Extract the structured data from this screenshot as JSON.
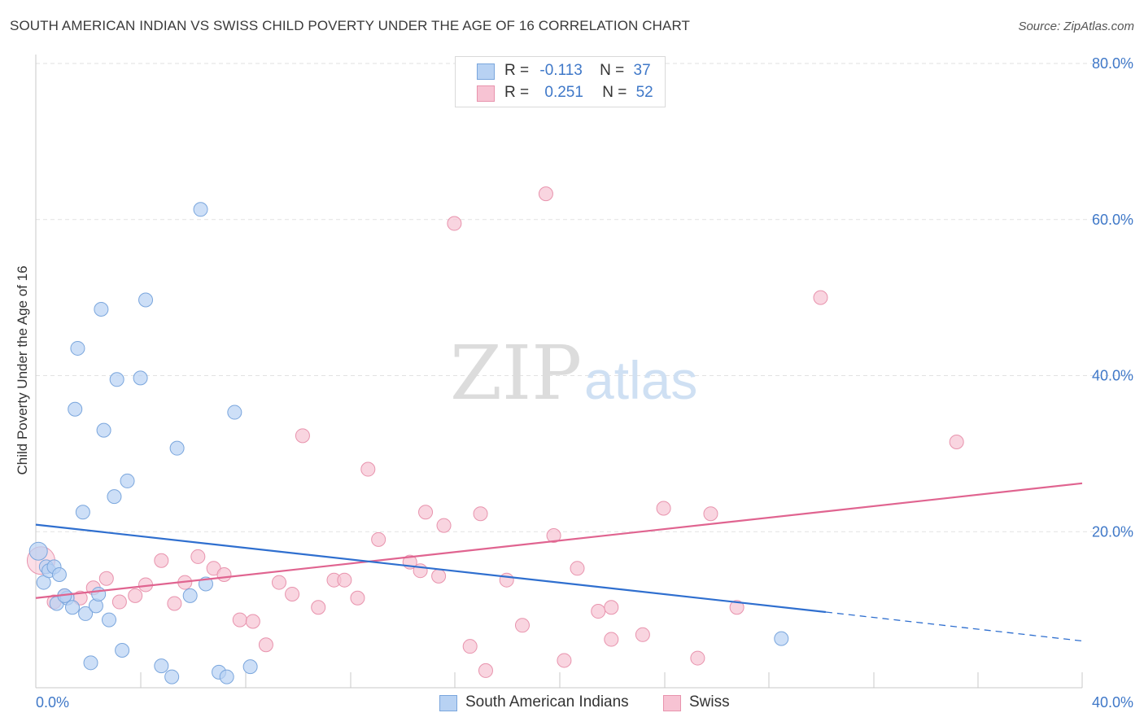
{
  "header": {
    "title": "SOUTH AMERICAN INDIAN VS SWISS CHILD POVERTY UNDER THE AGE OF 16 CORRELATION CHART",
    "source": "Source: ZipAtlas.com"
  },
  "legend": {
    "row1": {
      "r_label": "R =",
      "r_value": "-0.113",
      "n_label": "N =",
      "n_value": "37"
    },
    "row2": {
      "r_label": "R =",
      "r_value": "0.251",
      "n_label": "N =",
      "n_value": "52"
    }
  },
  "bottom_legend": {
    "south_american": "South American Indians",
    "swiss": "Swiss"
  },
  "watermark": {
    "zip": "ZIP",
    "atlas": "atlas"
  },
  "colors": {
    "blue_fill": "#b8d2f3",
    "blue_stroke": "#7aa6dd",
    "blue_line": "#2f6fcf",
    "pink_fill": "#f7c3d3",
    "pink_stroke": "#e893ad",
    "pink_line": "#e06490",
    "tick_text": "#3f78c8",
    "grid": "#e2e2e2"
  },
  "chart_data": {
    "type": "scatter",
    "title": "SOUTH AMERICAN INDIAN VS SWISS CHILD POVERTY UNDER THE AGE OF 16 CORRELATION CHART",
    "xlabel": "",
    "ylabel": "Child Poverty Under the Age of 16",
    "xlim": [
      0,
      40
    ],
    "ylim": [
      0,
      80
    ],
    "x_tick_labels": [
      "0.0%",
      "40.0%"
    ],
    "y_ticks": [
      20,
      40,
      60,
      80
    ],
    "y_tick_labels": [
      "20.0%",
      "40.0%",
      "60.0%",
      "80.0%"
    ],
    "grid": true,
    "series": [
      {
        "name": "South American Indians",
        "r": -0.113,
        "n": 37,
        "points": [
          [
            0.1,
            17.5
          ],
          [
            0.3,
            13.5
          ],
          [
            0.4,
            15.5
          ],
          [
            0.5,
            15.0
          ],
          [
            0.7,
            15.5
          ],
          [
            0.8,
            10.8
          ],
          [
            0.9,
            14.5
          ],
          [
            1.2,
            11.5
          ],
          [
            1.4,
            10.3
          ],
          [
            1.5,
            35.7
          ],
          [
            1.6,
            43.5
          ],
          [
            1.8,
            22.5
          ],
          [
            1.9,
            9.5
          ],
          [
            2.1,
            3.2
          ],
          [
            2.3,
            10.5
          ],
          [
            2.4,
            12.0
          ],
          [
            2.5,
            48.5
          ],
          [
            2.6,
            33.0
          ],
          [
            2.8,
            8.7
          ],
          [
            3.0,
            24.5
          ],
          [
            3.1,
            39.5
          ],
          [
            3.3,
            4.8
          ],
          [
            3.5,
            26.5
          ],
          [
            4.0,
            39.7
          ],
          [
            4.2,
            49.7
          ],
          [
            4.8,
            2.8
          ],
          [
            5.2,
            1.4
          ],
          [
            5.4,
            30.7
          ],
          [
            5.9,
            11.8
          ],
          [
            6.3,
            61.3
          ],
          [
            6.5,
            13.3
          ],
          [
            7.0,
            2.0
          ],
          [
            7.3,
            1.4
          ],
          [
            7.6,
            35.3
          ],
          [
            8.2,
            2.7
          ],
          [
            28.5,
            6.3
          ],
          [
            1.1,
            11.8
          ]
        ],
        "trend": {
          "x": [
            0,
            30.2
          ],
          "y": [
            20.9,
            9.7
          ]
        },
        "trend_extension": {
          "x": [
            30.2,
            40
          ],
          "y": [
            9.7,
            6.0
          ]
        }
      },
      {
        "name": "Swiss",
        "r": 0.251,
        "n": 52,
        "points": [
          [
            0.2,
            16.3
          ],
          [
            0.7,
            11.0
          ],
          [
            1.1,
            11.8
          ],
          [
            1.7,
            11.5
          ],
          [
            2.2,
            12.8
          ],
          [
            2.7,
            14.0
          ],
          [
            3.2,
            11.0
          ],
          [
            3.8,
            11.8
          ],
          [
            4.2,
            13.2
          ],
          [
            4.8,
            16.3
          ],
          [
            5.3,
            10.8
          ],
          [
            5.7,
            13.5
          ],
          [
            6.2,
            16.8
          ],
          [
            6.8,
            15.3
          ],
          [
            7.2,
            14.5
          ],
          [
            7.8,
            8.7
          ],
          [
            8.3,
            8.5
          ],
          [
            8.8,
            5.5
          ],
          [
            9.3,
            13.5
          ],
          [
            9.8,
            12.0
          ],
          [
            10.2,
            32.3
          ],
          [
            10.8,
            10.3
          ],
          [
            11.4,
            13.8
          ],
          [
            11.8,
            13.8
          ],
          [
            12.3,
            11.5
          ],
          [
            12.7,
            28.0
          ],
          [
            13.1,
            19.0
          ],
          [
            14.3,
            16.1
          ],
          [
            14.7,
            15.0
          ],
          [
            14.9,
            22.5
          ],
          [
            15.4,
            14.3
          ],
          [
            15.6,
            20.8
          ],
          [
            16.0,
            59.5
          ],
          [
            16.6,
            5.3
          ],
          [
            17.0,
            22.3
          ],
          [
            17.2,
            2.2
          ],
          [
            18.0,
            13.8
          ],
          [
            18.6,
            8.0
          ],
          [
            19.5,
            63.3
          ],
          [
            19.8,
            19.5
          ],
          [
            20.2,
            3.5
          ],
          [
            20.7,
            15.3
          ],
          [
            21.5,
            9.8
          ],
          [
            22.0,
            10.3
          ],
          [
            22.0,
            6.2
          ],
          [
            23.2,
            6.8
          ],
          [
            24.0,
            23.0
          ],
          [
            25.3,
            3.8
          ],
          [
            25.8,
            22.3
          ],
          [
            26.8,
            10.3
          ],
          [
            30.0,
            50.0
          ],
          [
            35.2,
            31.5
          ]
        ],
        "trend": {
          "x": [
            0,
            40
          ],
          "y": [
            11.5,
            26.2
          ]
        }
      }
    ]
  }
}
